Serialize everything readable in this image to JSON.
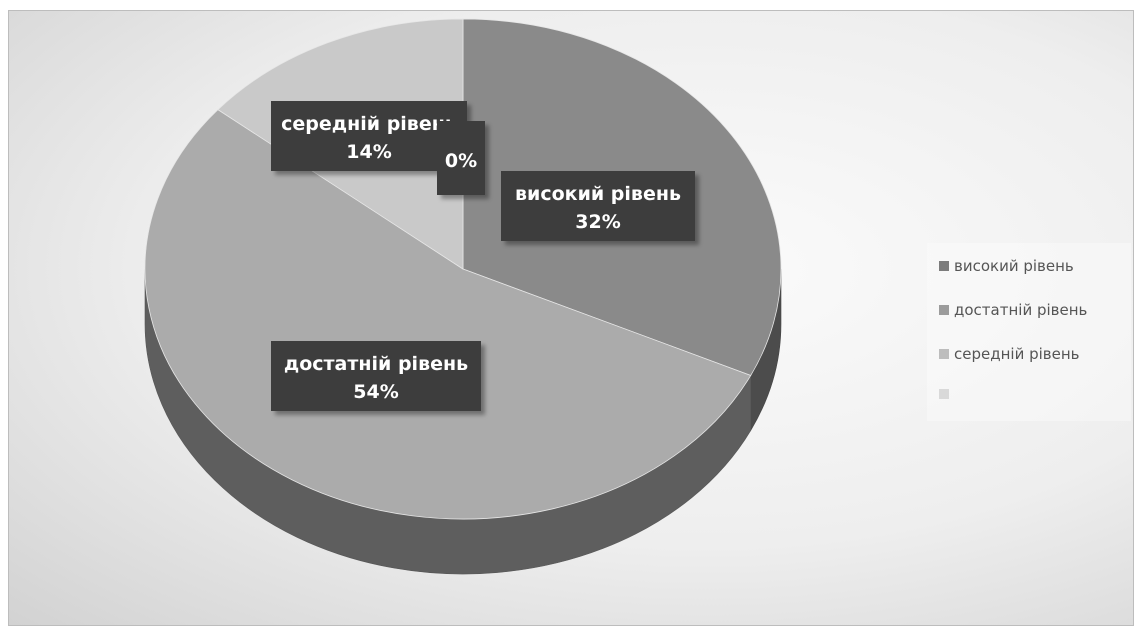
{
  "chart_data": {
    "type": "pie",
    "categories": [
      "високий рівень",
      "достатній рівень",
      "середній рівень",
      ""
    ],
    "values": [
      32,
      54,
      14,
      0
    ],
    "data_labels": [
      {
        "name": "високий рівень",
        "percent": "32%"
      },
      {
        "name": "достатній рівень",
        "percent": "54%"
      },
      {
        "name": "середній рівень",
        "percent": "14%"
      },
      {
        "name": "",
        "percent": "0%"
      }
    ],
    "colors": [
      "#8a8a8a",
      "#ababab",
      "#c9c9c9",
      "#dcdcdc"
    ],
    "legend_position": "right",
    "style": "3d"
  },
  "legend": {
    "items": [
      {
        "label": "високий рівень",
        "color": "#7c7c7c"
      },
      {
        "label": "достатній рівень",
        "color": "#9c9c9c"
      },
      {
        "label": "середній рівень",
        "color": "#bdbdbd"
      },
      {
        "label": "",
        "color": "#d9d9d9"
      }
    ]
  }
}
